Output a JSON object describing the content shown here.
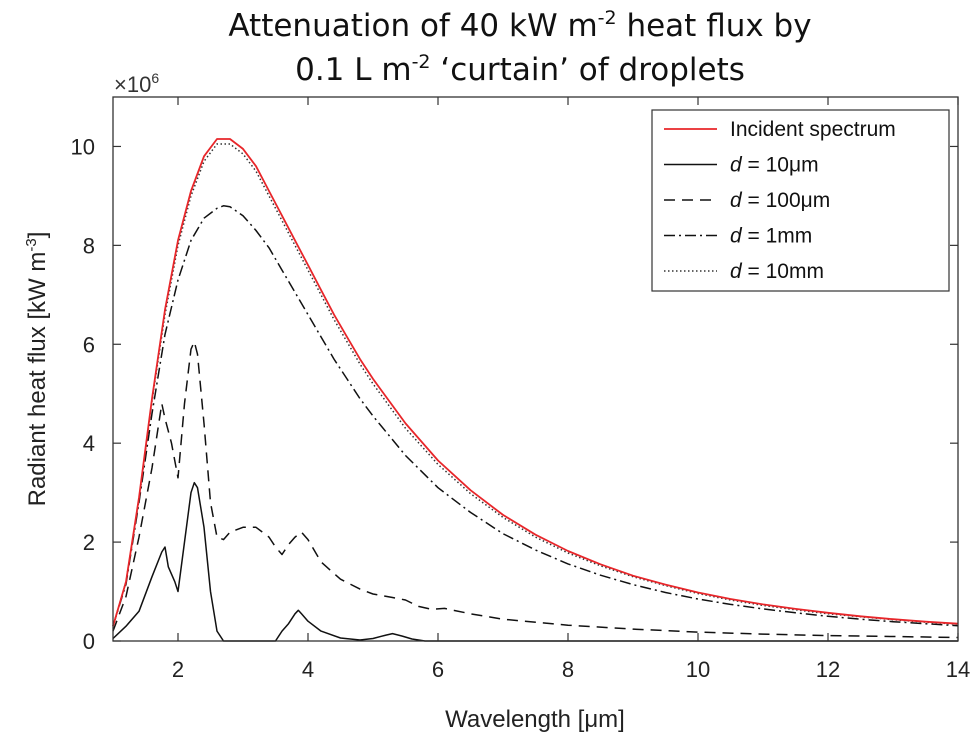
{
  "chart_data": {
    "type": "line",
    "title_lines": [
      [
        "Attenuation of 40 kW m",
        "-2",
        " heat flux by"
      ],
      [
        "0.1 L m",
        "-2",
        " ‘curtain’ of droplets"
      ]
    ],
    "xlabel": "Wavelength [μm]",
    "ylabel": {
      "base": "Radiant heat flux [kW m",
      "sup": "-3",
      "end": "]"
    },
    "y_exponent": {
      "base": "×10",
      "sup": "6"
    },
    "xlim": [
      1,
      14
    ],
    "ylim": [
      0,
      11
    ],
    "xticks": [
      2,
      4,
      6,
      8,
      10,
      12,
      14
    ],
    "xtick_labels": [
      "2",
      "4",
      "6",
      "8",
      "10",
      "12",
      "14"
    ],
    "yticks": [
      0,
      2,
      4,
      6,
      8,
      10
    ],
    "ytick_labels": [
      "0",
      "2",
      "4",
      "6",
      "8",
      "10"
    ],
    "grid": false,
    "legend_position": "top-right",
    "series": [
      {
        "name": "Incident spectrum",
        "legend": {
          "italic": "",
          "text": "Incident spectrum"
        },
        "color": "#e8262a",
        "dash": "none",
        "width": 1.8,
        "points": [
          [
            1.0,
            0.3
          ],
          [
            1.2,
            1.2
          ],
          [
            1.4,
            2.9
          ],
          [
            1.6,
            4.9
          ],
          [
            1.8,
            6.7
          ],
          [
            2.0,
            8.1
          ],
          [
            2.2,
            9.1
          ],
          [
            2.4,
            9.8
          ],
          [
            2.6,
            10.15
          ],
          [
            2.8,
            10.15
          ],
          [
            3.0,
            9.95
          ],
          [
            3.2,
            9.6
          ],
          [
            3.4,
            9.1
          ],
          [
            3.6,
            8.6
          ],
          [
            3.8,
            8.1
          ],
          [
            4.0,
            7.6
          ],
          [
            4.2,
            7.1
          ],
          [
            4.4,
            6.6
          ],
          [
            4.6,
            6.15
          ],
          [
            4.8,
            5.7
          ],
          [
            5.0,
            5.3
          ],
          [
            5.5,
            4.4
          ],
          [
            6.0,
            3.65
          ],
          [
            6.5,
            3.05
          ],
          [
            7.0,
            2.55
          ],
          [
            7.5,
            2.15
          ],
          [
            8.0,
            1.82
          ],
          [
            8.5,
            1.55
          ],
          [
            9.0,
            1.32
          ],
          [
            9.5,
            1.14
          ],
          [
            10.0,
            0.98
          ],
          [
            10.5,
            0.85
          ],
          [
            11.0,
            0.74
          ],
          [
            11.5,
            0.65
          ],
          [
            12.0,
            0.57
          ],
          [
            12.5,
            0.5
          ],
          [
            13.0,
            0.44
          ],
          [
            13.5,
            0.39
          ],
          [
            14.0,
            0.35
          ]
        ]
      },
      {
        "name": "d = 10μm",
        "legend": {
          "italic": "d",
          "text": " = 10μm"
        },
        "color": "#111111",
        "dash": "none",
        "width": 1.5,
        "points": [
          [
            1.0,
            0.05
          ],
          [
            1.2,
            0.3
          ],
          [
            1.4,
            0.6
          ],
          [
            1.6,
            1.3
          ],
          [
            1.75,
            1.8
          ],
          [
            1.8,
            1.9
          ],
          [
            1.85,
            1.5
          ],
          [
            1.95,
            1.2
          ],
          [
            2.0,
            1.0
          ],
          [
            2.1,
            2.0
          ],
          [
            2.2,
            3.0
          ],
          [
            2.25,
            3.2
          ],
          [
            2.3,
            3.1
          ],
          [
            2.4,
            2.3
          ],
          [
            2.5,
            1.0
          ],
          [
            2.6,
            0.2
          ],
          [
            2.7,
            0.0
          ],
          [
            3.0,
            0.0
          ],
          [
            3.3,
            0.0
          ],
          [
            3.5,
            0.0
          ],
          [
            3.6,
            0.2
          ],
          [
            3.7,
            0.35
          ],
          [
            3.8,
            0.55
          ],
          [
            3.85,
            0.62
          ],
          [
            3.9,
            0.55
          ],
          [
            4.0,
            0.4
          ],
          [
            4.2,
            0.2
          ],
          [
            4.5,
            0.06
          ],
          [
            4.8,
            0.02
          ],
          [
            5.0,
            0.05
          ],
          [
            5.2,
            0.12
          ],
          [
            5.3,
            0.15
          ],
          [
            5.45,
            0.1
          ],
          [
            5.6,
            0.04
          ],
          [
            5.8,
            0.0
          ],
          [
            6.0,
            0.0
          ],
          [
            8.0,
            0.0
          ],
          [
            10.0,
            0.0
          ],
          [
            12.0,
            0.0
          ],
          [
            14.0,
            0.0
          ]
        ]
      },
      {
        "name": "d = 100μm",
        "legend": {
          "italic": "d",
          "text": " = 100μm"
        },
        "color": "#111111",
        "dash": "11 7",
        "width": 1.5,
        "points": [
          [
            1.0,
            0.2
          ],
          [
            1.2,
            0.9
          ],
          [
            1.4,
            2.1
          ],
          [
            1.6,
            3.5
          ],
          [
            1.75,
            4.8
          ],
          [
            1.8,
            4.5
          ],
          [
            1.9,
            4.0
          ],
          [
            2.0,
            3.3
          ],
          [
            2.1,
            4.8
          ],
          [
            2.2,
            5.9
          ],
          [
            2.25,
            6.05
          ],
          [
            2.3,
            5.8
          ],
          [
            2.4,
            4.4
          ],
          [
            2.5,
            2.8
          ],
          [
            2.6,
            2.1
          ],
          [
            2.7,
            2.05
          ],
          [
            2.8,
            2.2
          ],
          [
            3.0,
            2.3
          ],
          [
            3.2,
            2.3
          ],
          [
            3.4,
            2.1
          ],
          [
            3.5,
            1.9
          ],
          [
            3.6,
            1.75
          ],
          [
            3.7,
            1.95
          ],
          [
            3.8,
            2.1
          ],
          [
            3.9,
            2.2
          ],
          [
            4.0,
            2.05
          ],
          [
            4.2,
            1.6
          ],
          [
            4.5,
            1.25
          ],
          [
            4.8,
            1.05
          ],
          [
            5.0,
            0.95
          ],
          [
            5.3,
            0.88
          ],
          [
            5.5,
            0.83
          ],
          [
            5.7,
            0.7
          ],
          [
            5.9,
            0.64
          ],
          [
            6.1,
            0.66
          ],
          [
            6.5,
            0.55
          ],
          [
            7.0,
            0.44
          ],
          [
            8.0,
            0.32
          ],
          [
            9.0,
            0.24
          ],
          [
            10.0,
            0.18
          ],
          [
            11.0,
            0.14
          ],
          [
            12.0,
            0.11
          ],
          [
            13.0,
            0.09
          ],
          [
            14.0,
            0.07
          ]
        ]
      },
      {
        "name": "d = 1mm",
        "legend": {
          "italic": "d",
          "text": " = 1mm"
        },
        "color": "#111111",
        "dash": "11 4 2 4",
        "width": 1.5,
        "points": [
          [
            1.0,
            0.3
          ],
          [
            1.2,
            1.15
          ],
          [
            1.4,
            2.8
          ],
          [
            1.6,
            4.6
          ],
          [
            1.8,
            6.2
          ],
          [
            2.0,
            7.3
          ],
          [
            2.2,
            8.1
          ],
          [
            2.4,
            8.55
          ],
          [
            2.6,
            8.75
          ],
          [
            2.7,
            8.8
          ],
          [
            2.8,
            8.78
          ],
          [
            3.0,
            8.6
          ],
          [
            3.2,
            8.3
          ],
          [
            3.4,
            7.95
          ],
          [
            3.6,
            7.5
          ],
          [
            3.8,
            7.05
          ],
          [
            4.0,
            6.6
          ],
          [
            4.2,
            6.15
          ],
          [
            4.4,
            5.7
          ],
          [
            4.6,
            5.3
          ],
          [
            4.8,
            4.9
          ],
          [
            5.0,
            4.55
          ],
          [
            5.5,
            3.75
          ],
          [
            6.0,
            3.1
          ],
          [
            6.5,
            2.6
          ],
          [
            7.0,
            2.17
          ],
          [
            7.5,
            1.84
          ],
          [
            8.0,
            1.56
          ],
          [
            8.5,
            1.33
          ],
          [
            9.0,
            1.14
          ],
          [
            9.5,
            0.98
          ],
          [
            10.0,
            0.85
          ],
          [
            10.5,
            0.74
          ],
          [
            11.0,
            0.65
          ],
          [
            11.5,
            0.57
          ],
          [
            12.0,
            0.5
          ],
          [
            12.5,
            0.44
          ],
          [
            13.0,
            0.39
          ],
          [
            13.5,
            0.35
          ],
          [
            14.0,
            0.31
          ]
        ]
      },
      {
        "name": "d = 10mm",
        "legend": {
          "italic": "d",
          "text": " = 10mm"
        },
        "color": "#333333",
        "dash": "1.5 2.5",
        "width": 1.5,
        "points": [
          [
            1.0,
            0.3
          ],
          [
            1.2,
            1.2
          ],
          [
            1.4,
            2.85
          ],
          [
            1.6,
            4.85
          ],
          [
            1.8,
            6.6
          ],
          [
            2.0,
            8.0
          ],
          [
            2.2,
            9.0
          ],
          [
            2.4,
            9.7
          ],
          [
            2.6,
            10.05
          ],
          [
            2.8,
            10.05
          ],
          [
            3.0,
            9.85
          ],
          [
            3.2,
            9.5
          ],
          [
            3.4,
            9.0
          ],
          [
            3.6,
            8.5
          ],
          [
            3.8,
            8.0
          ],
          [
            4.0,
            7.5
          ],
          [
            4.2,
            7.0
          ],
          [
            4.4,
            6.5
          ],
          [
            4.6,
            6.05
          ],
          [
            4.8,
            5.6
          ],
          [
            5.0,
            5.2
          ],
          [
            5.5,
            4.3
          ],
          [
            6.0,
            3.57
          ],
          [
            6.5,
            2.98
          ],
          [
            7.0,
            2.5
          ],
          [
            7.5,
            2.1
          ],
          [
            8.0,
            1.78
          ],
          [
            8.5,
            1.52
          ],
          [
            9.0,
            1.3
          ],
          [
            9.5,
            1.12
          ],
          [
            10.0,
            0.96
          ],
          [
            10.5,
            0.83
          ],
          [
            11.0,
            0.72
          ],
          [
            11.5,
            0.63
          ],
          [
            12.0,
            0.55
          ],
          [
            12.5,
            0.49
          ],
          [
            13.0,
            0.43
          ],
          [
            13.5,
            0.38
          ],
          [
            14.0,
            0.34
          ]
        ]
      }
    ]
  }
}
